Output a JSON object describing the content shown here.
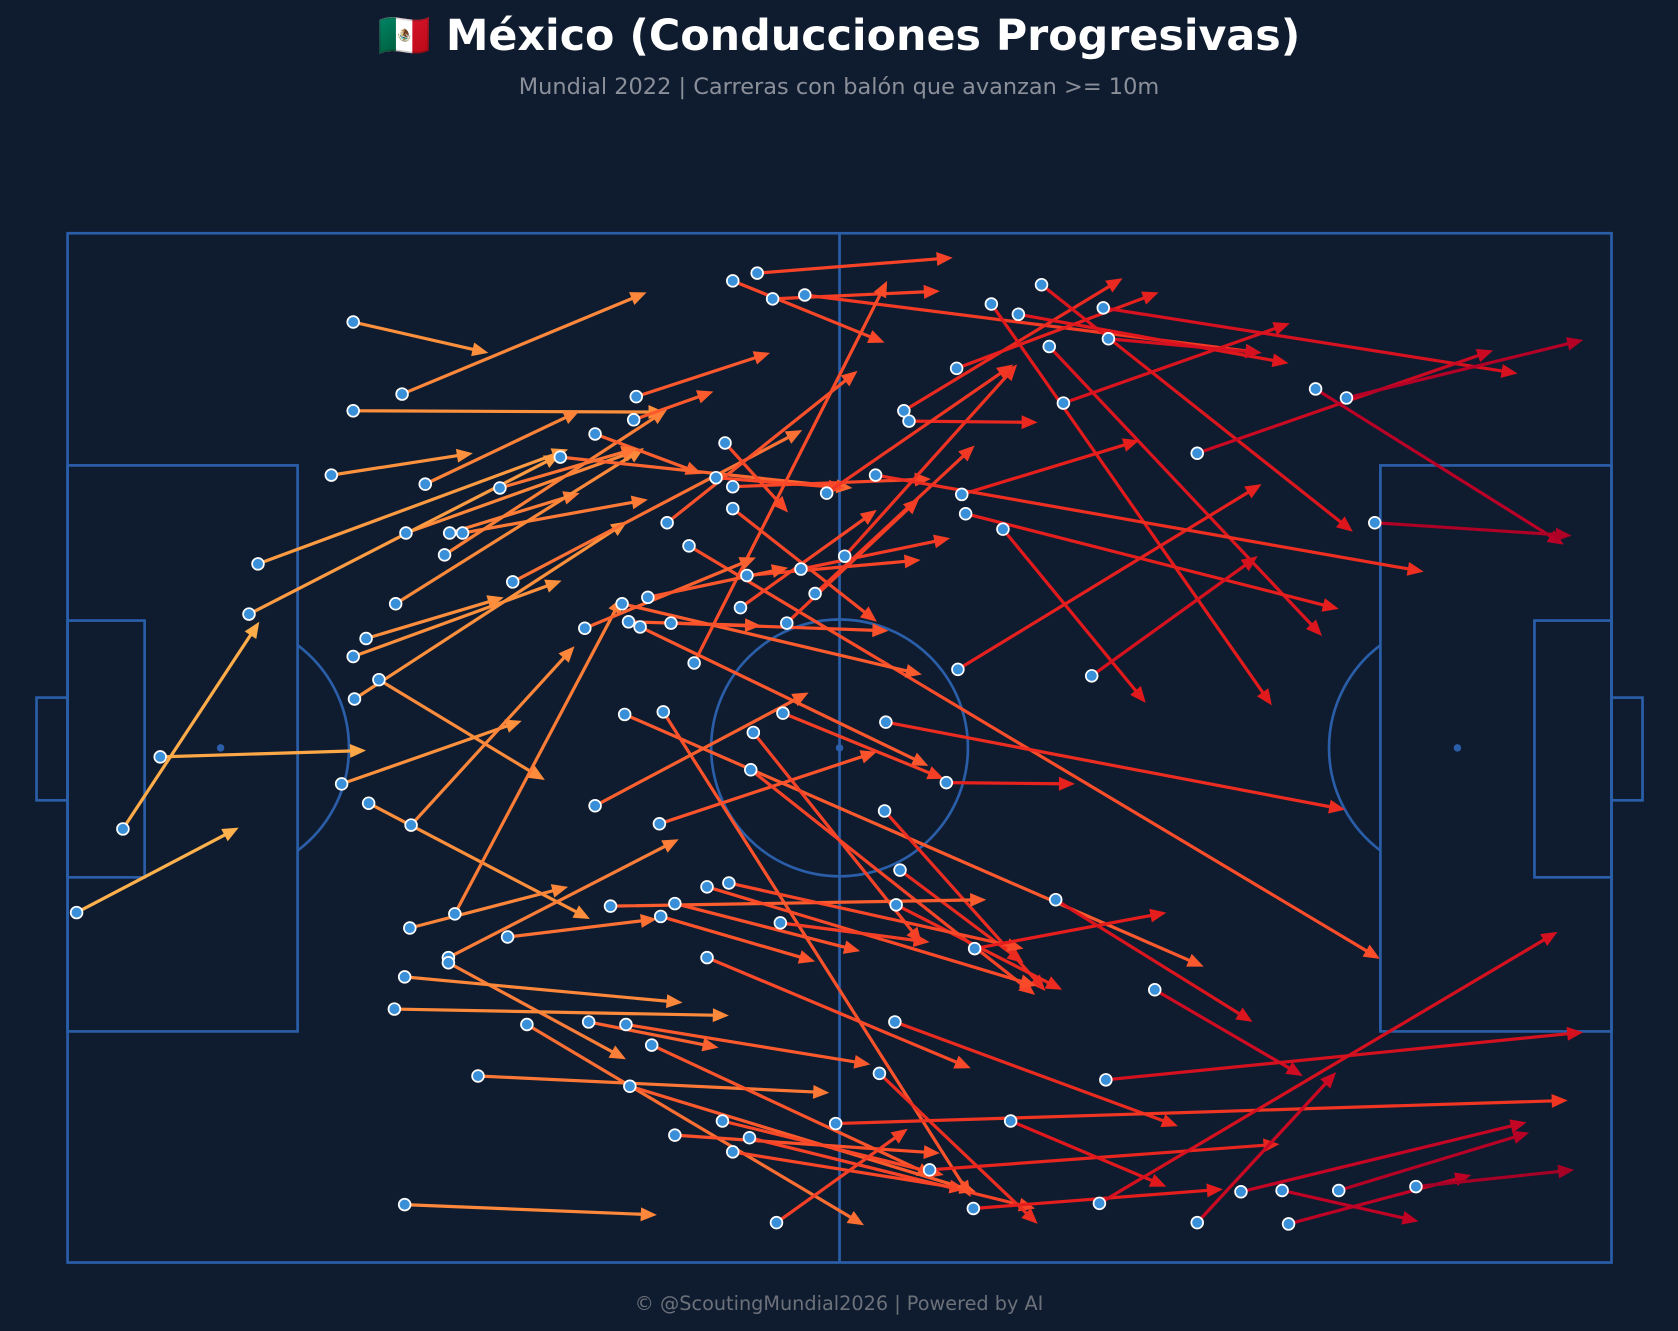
{
  "chart_data": {
    "type": "pitch-arrows",
    "title": "🇲🇽 México (Conducciones Progresivas)",
    "subtitle": "Mundial 2022 | Carreras con balón que avanzan >= 10m",
    "footer": "© @ScoutingMundial2026 | Powered by AI",
    "xlim": [
      0,
      120
    ],
    "ylim": [
      0,
      80
    ],
    "cmap": [
      "#feb24c",
      "#fd8d3c",
      "#fc4e2a",
      "#e31a1c",
      "#bd0026",
      "#800026"
    ],
    "start_color": "#3a8fd9",
    "runs": [
      [
        22.2,
        6.9,
        32.7,
        9.3
      ],
      [
        26.0,
        12.5,
        45.0,
        4.6
      ],
      [
        22.2,
        13.8,
        46.4,
        13.9
      ],
      [
        20.5,
        18.8,
        31.5,
        17.1
      ],
      [
        27.8,
        19.5,
        39.8,
        13.8
      ],
      [
        14.8,
        25.7,
        38.9,
        16.8
      ],
      [
        26.3,
        23.3,
        44.5,
        16.8
      ],
      [
        29.7,
        23.3,
        39.8,
        20.2
      ],
      [
        30.7,
        23.3,
        45.1,
        20.7
      ],
      [
        29.3,
        25.0,
        46.6,
        13.7
      ],
      [
        14.1,
        29.6,
        38.3,
        17.2
      ],
      [
        25.5,
        28.8,
        44.8,
        16.7
      ],
      [
        23.2,
        31.5,
        33.9,
        28.3
      ],
      [
        22.2,
        32.9,
        38.4,
        27.0
      ],
      [
        22.3,
        36.2,
        43.5,
        22.4
      ],
      [
        7.2,
        40.7,
        23.2,
        40.2
      ],
      [
        4.3,
        46.3,
        14.9,
        30.2
      ],
      [
        24.2,
        34.7,
        37.1,
        42.5
      ],
      [
        21.3,
        42.8,
        35.3,
        37.9
      ],
      [
        23.4,
        44.3,
        40.6,
        53.3
      ],
      [
        26.7,
        46.0,
        39.4,
        32.1
      ],
      [
        0.7,
        52.8,
        13.3,
        46.2
      ],
      [
        30.1,
        52.9,
        43.1,
        28.3
      ],
      [
        26.6,
        54.0,
        38.9,
        50.8
      ],
      [
        29.6,
        56.3,
        47.5,
        47.1
      ],
      [
        29.6,
        56.7,
        43.4,
        64.2
      ],
      [
        34.2,
        54.7,
        45.8,
        53.3
      ],
      [
        26.2,
        57.8,
        47.8,
        59.8
      ],
      [
        25.4,
        60.3,
        51.4,
        60.8
      ],
      [
        35.7,
        61.5,
        61.9,
        77.1
      ],
      [
        40.5,
        61.3,
        50.6,
        63.3
      ],
      [
        43.4,
        61.5,
        62.4,
        64.6
      ],
      [
        31.9,
        65.5,
        59.2,
        66.8
      ],
      [
        45.4,
        63.1,
        67.3,
        73.3
      ],
      [
        43.7,
        66.3,
        70.6,
        74.5
      ],
      [
        47.2,
        70.1,
        67.8,
        71.5
      ],
      [
        50.9,
        69.0,
        68.1,
        73.2
      ],
      [
        51.7,
        71.4,
        69.8,
        74.3
      ],
      [
        53.0,
        70.3,
        75.2,
        75.8
      ],
      [
        26.2,
        75.5,
        45.8,
        76.3
      ],
      [
        55.1,
        76.9,
        65.3,
        69.6
      ],
      [
        41.0,
        15.6,
        49.3,
        18.7
      ],
      [
        44.2,
        12.7,
        54.6,
        9.3
      ],
      [
        44.0,
        14.5,
        50.2,
        12.3
      ],
      [
        38.3,
        17.4,
        61.0,
        19.8
      ],
      [
        33.6,
        19.8,
        44.3,
        16.7
      ],
      [
        34.6,
        27.1,
        57.1,
        15.3
      ],
      [
        46.6,
        22.5,
        61.4,
        10.7
      ],
      [
        51.1,
        16.3,
        56.0,
        21.7
      ],
      [
        51.7,
        3.7,
        63.5,
        8.5
      ],
      [
        53.6,
        3.1,
        68.8,
        1.9
      ],
      [
        54.8,
        5.1,
        67.8,
        4.5
      ],
      [
        57.3,
        4.8,
        92.8,
        9.3
      ],
      [
        50.4,
        19.0,
        60.4,
        19.8
      ],
      [
        51.7,
        19.7,
        67.1,
        19.1
      ],
      [
        51.7,
        21.4,
        62.9,
        30.2
      ],
      [
        48.3,
        24.3,
        102.0,
        56.4
      ],
      [
        52.8,
        26.6,
        66.3,
        25.4
      ],
      [
        57.0,
        26.1,
        68.6,
        23.7
      ],
      [
        52.3,
        29.1,
        62.9,
        21.5
      ],
      [
        58.1,
        28.0,
        70.5,
        16.5
      ],
      [
        55.9,
        30.3,
        66.2,
        20.6
      ],
      [
        60.4,
        25.1,
        73.8,
        10.2
      ],
      [
        48.7,
        33.4,
        63.7,
        3.7
      ],
      [
        40.2,
        30.7,
        53.5,
        25.2
      ],
      [
        43.1,
        28.8,
        66.4,
        34.3
      ],
      [
        44.5,
        30.6,
        66.9,
        41.4
      ],
      [
        45.1,
        28.3,
        56.0,
        26.0
      ],
      [
        43.6,
        30.2,
        53.9,
        30.5
      ],
      [
        46.9,
        30.3,
        63.8,
        30.9
      ],
      [
        43.3,
        37.4,
        88.3,
        57.0
      ],
      [
        46.3,
        37.2,
        70.2,
        74.9
      ],
      [
        41.0,
        44.5,
        57.6,
        35.7
      ],
      [
        46.0,
        45.9,
        62.9,
        40.3
      ],
      [
        53.3,
        38.8,
        66.4,
        55.2
      ],
      [
        53.1,
        41.7,
        75.2,
        59.2
      ],
      [
        55.6,
        37.3,
        68.1,
        42.4
      ],
      [
        63.6,
        38.0,
        99.3,
        44.8
      ],
      [
        68.3,
        42.7,
        78.3,
        42.8
      ],
      [
        63.5,
        44.9,
        76.0,
        58.9
      ],
      [
        64.7,
        49.5,
        74.3,
        56.7
      ],
      [
        64.4,
        52.2,
        77.3,
        58.8
      ],
      [
        42.2,
        52.3,
        71.4,
        51.8
      ],
      [
        46.1,
        53.1,
        58.1,
        56.6
      ],
      [
        47.2,
        52.1,
        61.6,
        55.8
      ],
      [
        49.7,
        50.8,
        75.3,
        58.5
      ],
      [
        51.4,
        50.5,
        74.3,
        55.6
      ],
      [
        55.4,
        53.6,
        67.0,
        55.1
      ],
      [
        49.7,
        56.3,
        70.2,
        64.9
      ],
      [
        64.3,
        61.3,
        86.3,
        69.4
      ],
      [
        63.1,
        65.3,
        75.4,
        77.0
      ],
      [
        59.7,
        69.2,
        116.6,
        67.4
      ],
      [
        67.0,
        72.8,
        94.2,
        70.8
      ],
      [
        70.4,
        75.8,
        89.8,
        74.3
      ],
      [
        73.3,
        69.0,
        85.4,
        74.1
      ],
      [
        70.5,
        55.6,
        85.4,
        52.8
      ],
      [
        76.8,
        51.8,
        92.1,
        61.3
      ],
      [
        84.5,
        58.8,
        96.0,
        65.5
      ],
      [
        80.7,
        65.8,
        117.8,
        62.1
      ],
      [
        80.2,
        75.4,
        115.8,
        54.3
      ],
      [
        87.8,
        76.9,
        98.6,
        65.2
      ],
      [
        91.2,
        74.5,
        113.4,
        69.1
      ],
      [
        94.4,
        74.4,
        105.0,
        76.8
      ],
      [
        98.8,
        74.4,
        113.6,
        69.9
      ],
      [
        94.9,
        77.0,
        109.1,
        73.2
      ],
      [
        104.8,
        74.1,
        117.1,
        72.8
      ],
      [
        65.0,
        13.8,
        82.0,
        3.5
      ],
      [
        65.4,
        14.6,
        75.4,
        14.7
      ],
      [
        69.1,
        10.5,
        84.8,
        4.6
      ],
      [
        71.8,
        5.5,
        93.6,
        36.7
      ],
      [
        72.7,
        23.0,
        83.8,
        36.5
      ],
      [
        73.9,
        6.3,
        94.9,
        10.1
      ],
      [
        75.7,
        4.0,
        99.9,
        23.2
      ],
      [
        76.3,
        8.8,
        97.5,
        31.3
      ],
      [
        80.5,
        5.8,
        112.7,
        10.9
      ],
      [
        80.9,
        8.2,
        92.8,
        9.3
      ],
      [
        77.4,
        13.2,
        95.0,
        7.0
      ],
      [
        69.8,
        21.8,
        98.8,
        29.2
      ],
      [
        69.2,
        33.9,
        92.8,
        19.5
      ],
      [
        79.6,
        34.4,
        92.5,
        25.1
      ],
      [
        87.8,
        17.1,
        110.8,
        9.1
      ],
      [
        97.0,
        12.1,
        116.3,
        24.2
      ],
      [
        99.4,
        12.8,
        117.8,
        8.3
      ],
      [
        101.6,
        22.5,
        116.9,
        23.5
      ],
      [
        59.0,
        20.2,
        73.5,
        10.2
      ],
      [
        69.5,
        20.3,
        83.3,
        16.1
      ],
      [
        62.8,
        18.8,
        105.4,
        26.3
      ]
    ]
  }
}
